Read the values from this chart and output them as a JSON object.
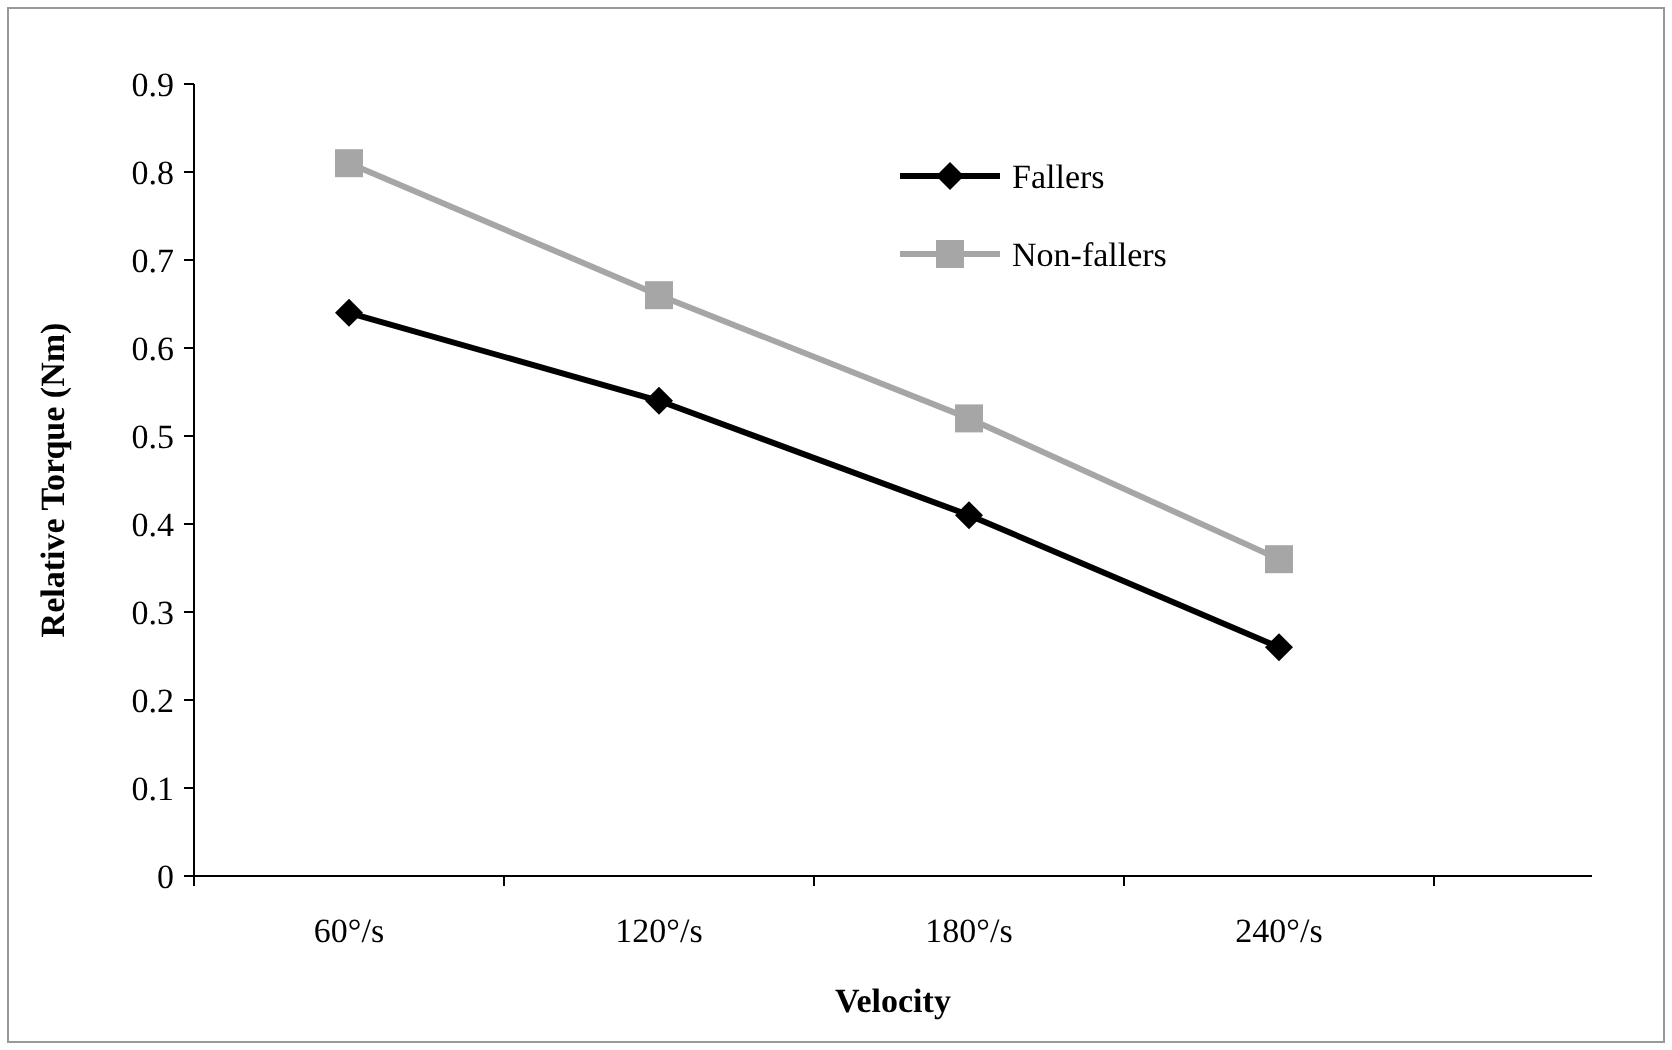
{
  "chart_data": {
    "type": "line",
    "xlabel": "Velocity",
    "ylabel": "Relative Torque (Nm)",
    "categories": [
      "60°/s",
      "120°/s",
      "180°/s",
      "240°/s"
    ],
    "series": [
      {
        "name": "Fallers",
        "color": "#000000",
        "marker": "diamond",
        "values": [
          0.64,
          0.54,
          0.41,
          0.26
        ]
      },
      {
        "name": "Non-fallers",
        "color": "#a6a6a6",
        "marker": "square",
        "values": [
          0.81,
          0.66,
          0.52,
          0.36
        ]
      }
    ],
    "ylim": [
      0,
      0.9
    ],
    "yticks": [
      0,
      0.1,
      0.2,
      0.3,
      0.4,
      0.5,
      0.6,
      0.7,
      0.8,
      0.9
    ],
    "grid": false,
    "legend": "top right",
    "line_style": "solid"
  }
}
